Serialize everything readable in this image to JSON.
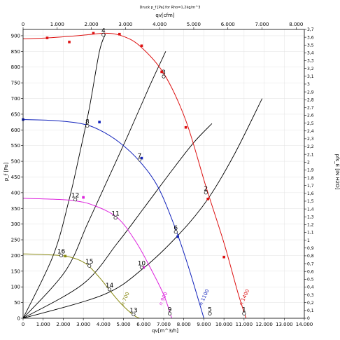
{
  "chart_data": {
    "type": "line",
    "title": "Druck p_f [Pa] for Rho=1,2kg/m^3",
    "xlabel": "qv[m^3/h]",
    "x2label": "qv[cfm]",
    "ylabel": "p_f [Pa]",
    "y2label": "pfs_E [IN H2O]",
    "xlim": [
      0,
      14000
    ],
    "ylim": [
      0,
      920
    ],
    "x2lim": [
      0,
      8240
    ],
    "y2lim": [
      0,
      3.7
    ],
    "x_ticks": [
      "0",
      "1.000",
      "2.000",
      "3.000",
      "4.000",
      "5.000",
      "6.000",
      "7.000",
      "8.000",
      "9.000",
      "10.000",
      "11.000",
      "12.000",
      "13.000",
      "14.000"
    ],
    "y_ticks": [
      "0",
      "50",
      "100",
      "150",
      "200",
      "250",
      "300",
      "350",
      "400",
      "450",
      "500",
      "550",
      "600",
      "650",
      "700",
      "750",
      "800",
      "850",
      "900"
    ],
    "x2_ticks": [
      "0",
      "1.000",
      "2.000",
      "3.000",
      "4.000",
      "5.000",
      "6.000",
      "7.000",
      "8.000"
    ],
    "y2_ticks": [
      "0",
      "0,1",
      "0,2",
      "0,3",
      "0,4",
      "0,5",
      "0,6",
      "0,7",
      "0,8",
      "0,9",
      "1",
      "1,1",
      "1,2",
      "1,3",
      "1,4",
      "1,5",
      "1,6",
      "1,7",
      "1,8",
      "1,9",
      "2",
      "2,1",
      "2,2",
      "2,3",
      "2,4",
      "2,5",
      "2,6",
      "2,7",
      "2,8",
      "2,9",
      "3",
      "3,1",
      "3,2",
      "3,3",
      "3,4",
      "3,5",
      "3,6",
      "3,7"
    ],
    "series": [
      {
        "name": "n 1400",
        "color": "#dd1111",
        "x": [
          0,
          1200,
          2300,
          3200,
          4100,
          4900,
          5800,
          7000,
          8100,
          9100,
          10000,
          10700,
          11100
        ],
        "y": [
          890,
          893,
          898,
          903,
          908,
          900,
          868,
          780,
          630,
          420,
          240,
          80,
          0
        ],
        "markers": [
          [
            1200,
            893
          ],
          [
            2300,
            880
          ],
          [
            3500,
            908
          ],
          [
            4800,
            905
          ],
          [
            5900,
            868
          ],
          [
            6900,
            785
          ],
          [
            8100,
            608
          ],
          [
            9200,
            380
          ],
          [
            10000,
            195
          ]
        ]
      },
      {
        "name": "n 1100",
        "color": "#1122bb",
        "x": [
          0,
          1500,
          2900,
          3800,
          4800,
          5800,
          6700,
          7500,
          8200,
          9000
        ],
        "y": [
          633,
          630,
          620,
          600,
          560,
          500,
          420,
          300,
          170,
          0
        ],
        "markers": [
          [
            0,
            633
          ],
          [
            3800,
            625
          ],
          [
            5900,
            510
          ],
          [
            7700,
            260
          ]
        ]
      },
      {
        "name": "n 900",
        "color": "#dd22dd",
        "x": [
          0,
          1200,
          2500,
          3500,
          4700,
          5600,
          6300,
          7000,
          7400
        ],
        "y": [
          382,
          380,
          375,
          360,
          320,
          245,
          165,
          75,
          0
        ],
        "markers": [
          [
            3000,
            385
          ],
          [
            6000,
            162
          ]
        ]
      },
      {
        "name": "n 700",
        "color": "#888811",
        "x": [
          0,
          1000,
          2200,
          3100,
          3800,
          4300,
          4900,
          5500,
          5800
        ],
        "y": [
          205,
          203,
          197,
          175,
          130,
          90,
          45,
          10,
          0
        ],
        "markers": [
          [
            2100,
            198
          ]
        ]
      }
    ],
    "system_curves": [
      {
        "x": [
          0,
          1500,
          2300,
          2800,
          3300,
          3800,
          4100
        ],
        "y": [
          0,
          200,
          380,
          520,
          670,
          850,
          905
        ]
      },
      {
        "x": [
          0,
          2100,
          3200,
          4200,
          5200,
          6300,
          7100
        ],
        "y": [
          0,
          150,
          300,
          440,
          580,
          740,
          850
        ]
      },
      {
        "x": [
          0,
          3000,
          4700,
          6000,
          7400,
          8500,
          9400
        ],
        "y": [
          0,
          110,
          240,
          350,
          470,
          560,
          620
        ]
      },
      {
        "x": [
          0,
          4000,
          6000,
          7800,
          9200,
          10500,
          11900
        ],
        "y": [
          0,
          75,
          160,
          270,
          380,
          520,
          700
        ]
      }
    ],
    "point_labels": [
      {
        "text": "4",
        "x": 4000,
        "y": 903
      },
      {
        "text": "8",
        "x": 3200,
        "y": 613
      },
      {
        "text": "12",
        "x": 2600,
        "y": 378
      },
      {
        "text": "16",
        "x": 1900,
        "y": 200
      },
      {
        "text": "15",
        "x": 3300,
        "y": 167
      },
      {
        "text": "14",
        "x": 4300,
        "y": 92
      },
      {
        "text": "11",
        "x": 4600,
        "y": 320
      },
      {
        "text": "10",
        "x": 5900,
        "y": 162
      },
      {
        "text": "7",
        "x": 5800,
        "y": 505
      },
      {
        "text": "6",
        "x": 7600,
        "y": 275
      },
      {
        "text": "3",
        "x": 7000,
        "y": 770
      },
      {
        "text": "2",
        "x": 9100,
        "y": 400
      },
      {
        "text": "13",
        "x": 5500,
        "y": 12
      },
      {
        "text": "9",
        "x": 7300,
        "y": 15
      },
      {
        "text": "5",
        "x": 9300,
        "y": 15
      },
      {
        "text": "1",
        "x": 11000,
        "y": 15
      }
    ],
    "curve_labels": [
      {
        "text": "n 700",
        "color": "#888811",
        "x": 5000,
        "y": 40
      },
      {
        "text": "n 900",
        "color": "#dd22dd",
        "x": 6900,
        "y": 40
      },
      {
        "text": "n 1100",
        "color": "#1122bb",
        "x": 8900,
        "y": 40
      },
      {
        "text": "n 1400",
        "color": "#dd1111",
        "x": 10900,
        "y": 40
      }
    ],
    "grid": true
  }
}
